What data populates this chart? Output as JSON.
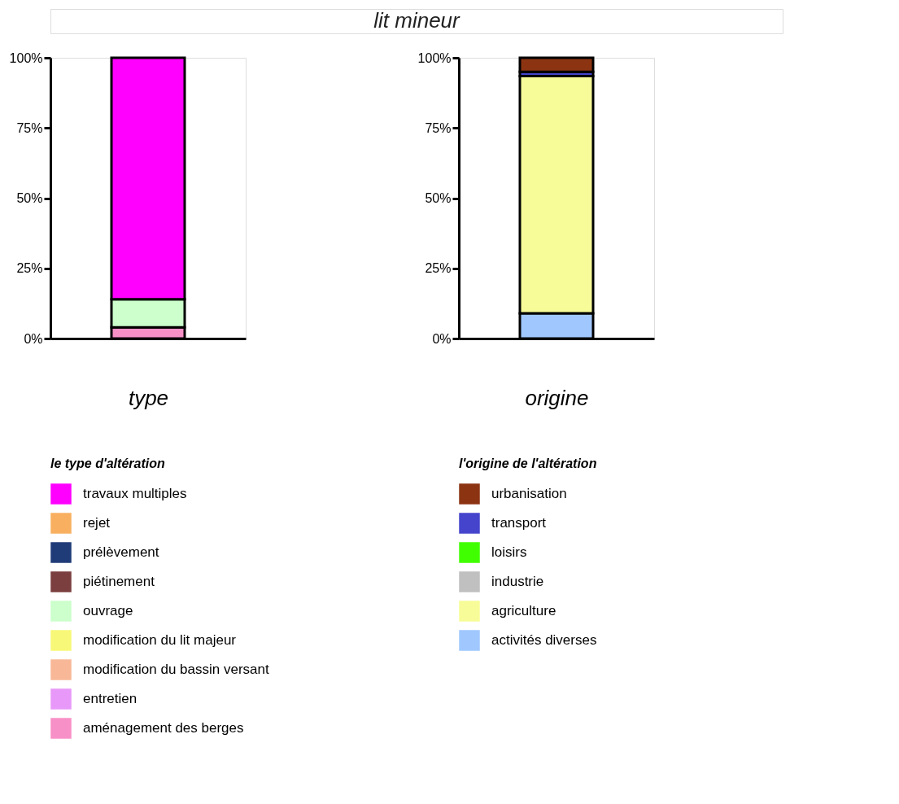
{
  "chart_data": [
    {
      "type": "other",
      "title": "lit mineur"
    },
    {
      "type": "bar",
      "xlabel": "type",
      "legend_title": "le type d'altération",
      "categories": [
        null
      ],
      "stacked": true,
      "legend": "bottom",
      "grid": false,
      "ylim": [
        0,
        100
      ],
      "yticks": [
        {
          "value": 0,
          "label": "0%"
        },
        {
          "value": 25,
          "label": "25%"
        },
        {
          "value": 50,
          "label": "50%"
        },
        {
          "value": 75,
          "label": "75%"
        },
        {
          "value": 100,
          "label": "100%"
        }
      ],
      "series": [
        {
          "name": "aménagement des berges",
          "color": "#f890c8",
          "values": [
            4
          ]
        },
        {
          "name": "entretien",
          "color": "#e898f8",
          "values": [
            0
          ]
        },
        {
          "name": "modification du bassin versant",
          "color": "#f8b898",
          "values": [
            0
          ]
        },
        {
          "name": "modification du lit majeur",
          "color": "#f8f878",
          "values": [
            0
          ]
        },
        {
          "name": "ouvrage",
          "color": "#ccffcc",
          "values": [
            10
          ]
        },
        {
          "name": "piétinement",
          "color": "#7b3f3f",
          "values": [
            0
          ]
        },
        {
          "name": "prélèvement",
          "color": "#203c78",
          "values": [
            0
          ]
        },
        {
          "name": "rejet",
          "color": "#f8b060",
          "values": [
            0
          ]
        },
        {
          "name": "travaux multiples",
          "color": "#ff00ff",
          "values": [
            86
          ]
        }
      ]
    },
    {
      "type": "bar",
      "xlabel": "origine",
      "legend_title": "l'origine de l'altération",
      "categories": [
        null
      ],
      "stacked": true,
      "legend": "bottom",
      "grid": false,
      "ylim": [
        0,
        100
      ],
      "yticks": [
        {
          "value": 0,
          "label": "0%"
        },
        {
          "value": 25,
          "label": "25%"
        },
        {
          "value": 50,
          "label": "50%"
        },
        {
          "value": 75,
          "label": "75%"
        },
        {
          "value": 100,
          "label": "100%"
        }
      ],
      "series": [
        {
          "name": "activités diverses",
          "color": "#a0c8ff",
          "values": [
            9
          ]
        },
        {
          "name": "agriculture",
          "color": "#f8fc98",
          "values": [
            84.5
          ]
        },
        {
          "name": "industrie",
          "color": "#c0c0c0",
          "values": [
            0
          ]
        },
        {
          "name": "loisirs",
          "color": "#40ff00",
          "values": [
            0
          ]
        },
        {
          "name": "transport",
          "color": "#4444cc",
          "values": [
            1.5
          ]
        },
        {
          "name": "urbanisation",
          "color": "#8c3412",
          "values": [
            5
          ]
        }
      ]
    }
  ]
}
